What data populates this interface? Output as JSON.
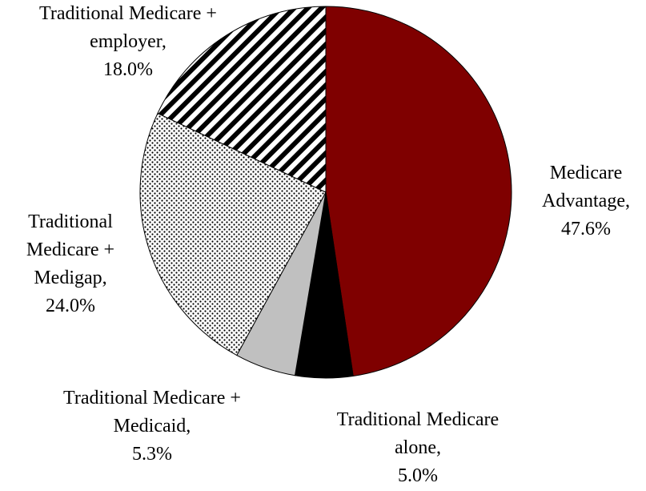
{
  "chart_data": {
    "type": "pie",
    "categories": [
      "Medicare Advantage,",
      "Traditional Medicare alone,",
      "Traditional Medicare + Medicaid,",
      "Traditional Medicare + Medigap,",
      "Traditional Medicare + employer,"
    ],
    "values": [
      47.6,
      5.0,
      5.3,
      24.0,
      18.0
    ],
    "value_labels": [
      "47.6%",
      "5.0%",
      "5.3%",
      "24.0%",
      "18.0%"
    ],
    "colors": [
      "#7f0000",
      "#000000",
      "#c0c0c0",
      "#7f0000",
      "#7f0000"
    ],
    "patterns": [
      "solid",
      "solid",
      "solid",
      "dots",
      "stripes"
    ]
  }
}
